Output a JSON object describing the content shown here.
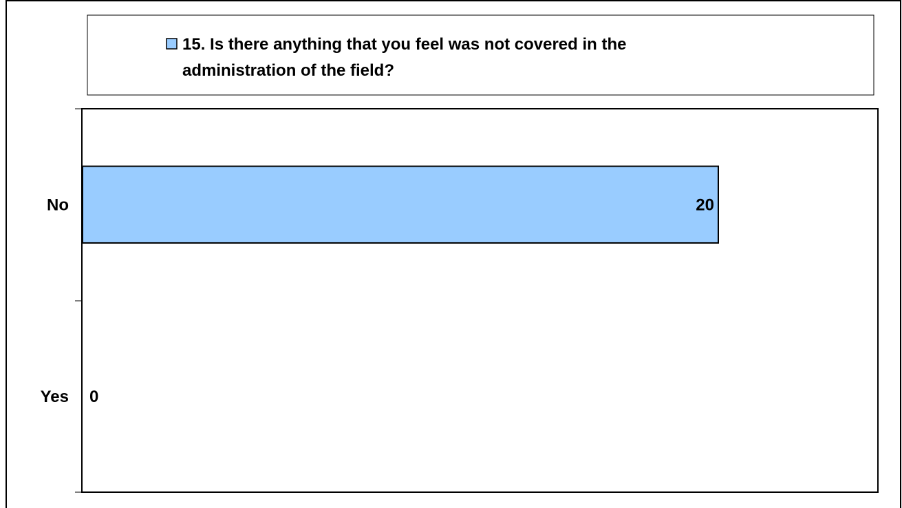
{
  "chart_data": {
    "type": "bar",
    "orientation": "horizontal",
    "categories": [
      "No",
      "Yes"
    ],
    "series": [
      {
        "name": "15. Is there anything that you feel was not covered in the administration of the field?",
        "values": [
          20,
          0
        ],
        "color": "#99ccff"
      }
    ],
    "xlim": [
      0,
      25
    ],
    "data_labels": true,
    "grid": false,
    "legend_position": "top",
    "legend_lines": [
      "15. Is there anything that you feel was not covered in the",
      "administration of the field?"
    ]
  }
}
